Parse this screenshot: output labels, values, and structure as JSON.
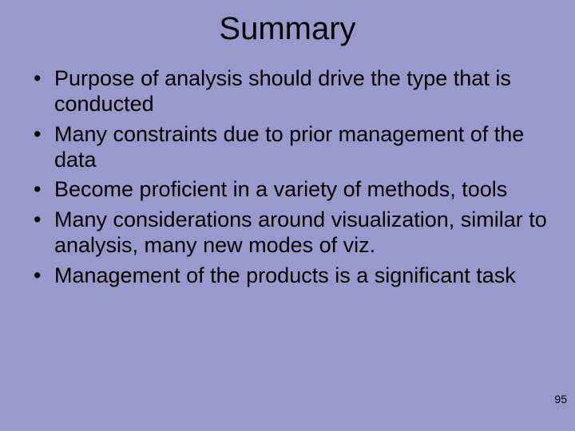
{
  "slide": {
    "background_color": "#9999cc",
    "text_color": "#000000",
    "title": "Summary",
    "title_fontsize": 40,
    "bullet_fontsize": 27,
    "bullets": [
      "Purpose of analysis should drive the type that is conducted",
      "Many constraints due to prior management of the data",
      "Become proficient in a variety of methods, tools",
      "Many considerations around visualization, similar to analysis, many new modes of viz.",
      "Management of the products is a significant task"
    ],
    "page_number": "95"
  }
}
